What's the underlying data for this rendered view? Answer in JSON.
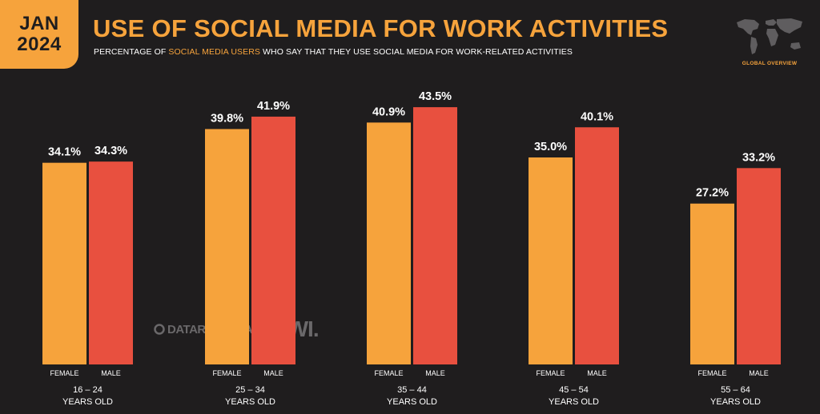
{
  "header": {
    "date_month": "JAN",
    "date_year": "2024",
    "title": "USE OF SOCIAL MEDIA FOR WORK ACTIVITIES",
    "subtitle_pre": "PERCENTAGE OF ",
    "subtitle_highlight": "SOCIAL MEDIA USERS",
    "subtitle_post": " WHO SAY THAT THEY USE SOCIAL MEDIA FOR WORK-RELATED ACTIVITIES",
    "region_label": "GLOBAL OVERVIEW"
  },
  "watermark": {
    "datareportal": "DATAREPORTAL",
    "gwi": "GWI."
  },
  "colors": {
    "background": "#1f1d1e",
    "female": "#f6a33c",
    "male": "#e8503f",
    "accent": "#f6a33c"
  },
  "chart_data": {
    "type": "bar",
    "title": "USE OF SOCIAL MEDIA FOR WORK ACTIVITIES",
    "categories": [
      [
        "16 – 24",
        "YEARS OLD"
      ],
      [
        "25 – 34",
        "YEARS OLD"
      ],
      [
        "35 – 44",
        "YEARS OLD"
      ],
      [
        "45 – 54",
        "YEARS OLD"
      ],
      [
        "55 – 64",
        "YEARS OLD"
      ]
    ],
    "series": [
      {
        "name": "FEMALE",
        "values": [
          34.1,
          39.8,
          40.9,
          35.0,
          27.2
        ],
        "labels": [
          "34.1%",
          "39.8%",
          "40.9%",
          "35.0%",
          "27.2%"
        ],
        "color": "#f6a33c"
      },
      {
        "name": "MALE",
        "values": [
          34.3,
          41.9,
          43.5,
          40.1,
          33.2
        ],
        "labels": [
          "34.3%",
          "41.9%",
          "43.5%",
          "40.1%",
          "33.2%"
        ],
        "color": "#e8503f"
      }
    ],
    "ylim": [
      0,
      50
    ],
    "grid": false,
    "legend": "none"
  }
}
